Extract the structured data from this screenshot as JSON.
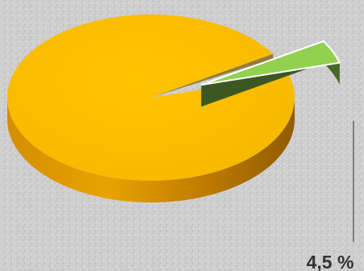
{
  "chart_data": {
    "type": "pie",
    "style": "3d-exploded",
    "slices": [
      {
        "value": 95.5,
        "color": "#F6B800",
        "label": ""
      },
      {
        "value": 4.5,
        "color": "#92D050",
        "label": "4,5 %"
      }
    ],
    "exploded_slice": 1,
    "background": "#C9C9C9"
  }
}
